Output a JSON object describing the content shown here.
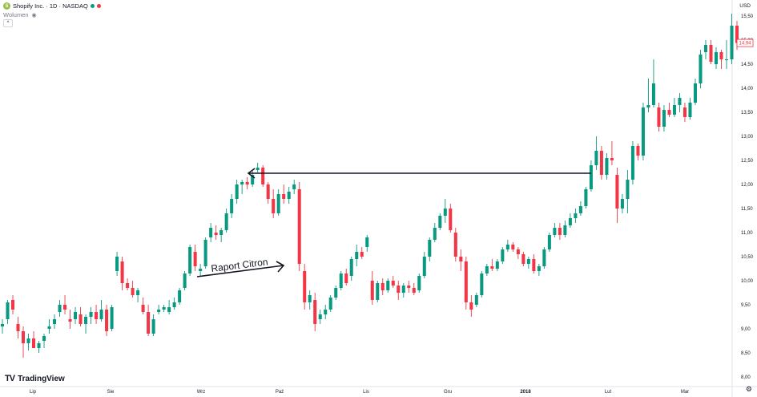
{
  "header": {
    "symbol_title": "Shopify Inc. · 1D · NASDAQ",
    "volume_label": "Wolumen",
    "collapse_glyph": "^",
    "currency": "USD",
    "brand": "TradingView",
    "status_dot_colors": [
      "#089981",
      "#f23645"
    ],
    "brand_color": "#95bf47"
  },
  "chart_data": {
    "type": "candlestick",
    "up_color": "#089981",
    "down_color": "#f23645",
    "ylim": [
      7.8,
      15.75
    ],
    "y_ticks": [
      "8,00",
      "8,50",
      "9,00",
      "9,50",
      "10,00",
      "10,50",
      "11,00",
      "11,50",
      "12,00",
      "12,50",
      "13,00",
      "13,50",
      "14,00",
      "14,50",
      "15,00",
      "15,50"
    ],
    "x_ticks": [
      {
        "label": "Lip",
        "bold": false
      },
      {
        "label": "Sie",
        "bold": false
      },
      {
        "label": "Wrz",
        "bold": false
      },
      {
        "label": "Paź",
        "bold": false
      },
      {
        "label": "Lis",
        "bold": false
      },
      {
        "label": "Gru",
        "bold": false
      },
      {
        "label": "2018",
        "bold": true
      },
      {
        "label": "Lut",
        "bold": false
      },
      {
        "label": "Mar",
        "bold": false
      }
    ],
    "last_price_label": "14,94",
    "candles": [
      [
        9.05,
        9.2,
        8.9,
        9.1
      ],
      [
        9.2,
        9.6,
        9.1,
        9.55
      ],
      [
        9.6,
        9.7,
        9.3,
        9.4
      ],
      [
        9.1,
        9.25,
        8.8,
        8.95
      ],
      [
        8.95,
        9.05,
        8.4,
        8.7
      ],
      [
        8.7,
        8.9,
        8.55,
        8.8
      ],
      [
        8.8,
        8.95,
        8.6,
        8.6
      ],
      [
        8.6,
        8.75,
        8.5,
        8.7
      ],
      [
        8.75,
        8.9,
        8.6,
        8.85
      ],
      [
        9.0,
        9.2,
        8.9,
        9.05
      ],
      [
        9.1,
        9.3,
        9.0,
        9.2
      ],
      [
        9.35,
        9.6,
        9.25,
        9.5
      ],
      [
        9.5,
        9.7,
        9.3,
        9.4
      ],
      [
        9.2,
        9.4,
        9.0,
        9.15
      ],
      [
        9.2,
        9.45,
        9.1,
        9.35
      ],
      [
        9.3,
        9.45,
        9.05,
        9.1
      ],
      [
        9.1,
        9.3,
        8.9,
        9.25
      ],
      [
        9.25,
        9.45,
        9.1,
        9.35
      ],
      [
        9.35,
        9.5,
        9.1,
        9.2
      ],
      [
        9.2,
        9.6,
        9.15,
        9.4
      ],
      [
        9.4,
        9.5,
        8.85,
        8.95
      ],
      [
        9.0,
        9.5,
        8.95,
        9.45
      ],
      [
        10.2,
        10.6,
        10.1,
        10.5
      ],
      [
        10.4,
        10.5,
        9.8,
        9.95
      ],
      [
        9.95,
        10.05,
        9.8,
        9.85
      ],
      [
        9.85,
        10.0,
        9.65,
        9.7
      ],
      [
        9.7,
        9.85,
        9.55,
        9.8
      ],
      [
        9.5,
        9.65,
        9.3,
        9.35
      ],
      [
        9.35,
        9.5,
        8.85,
        8.9
      ],
      [
        8.9,
        9.3,
        8.85,
        9.2
      ],
      [
        9.35,
        9.5,
        9.3,
        9.4
      ],
      [
        9.4,
        9.5,
        9.35,
        9.45
      ],
      [
        9.35,
        9.6,
        9.3,
        9.45
      ],
      [
        9.45,
        9.65,
        9.4,
        9.55
      ],
      [
        9.55,
        9.85,
        9.5,
        9.8
      ],
      [
        9.85,
        10.2,
        9.8,
        10.15
      ],
      [
        10.15,
        10.75,
        10.1,
        10.7
      ],
      [
        10.6,
        10.75,
        10.2,
        10.3
      ],
      [
        10.2,
        10.35,
        10.1,
        10.25
      ],
      [
        10.3,
        10.9,
        10.25,
        10.85
      ],
      [
        10.9,
        11.2,
        10.8,
        11.1
      ],
      [
        11.0,
        11.15,
        10.85,
        10.95
      ],
      [
        10.95,
        11.1,
        10.8,
        11.05
      ],
      [
        11.05,
        11.5,
        11.0,
        11.4
      ],
      [
        11.4,
        11.8,
        11.3,
        11.7
      ],
      [
        11.7,
        12.1,
        11.6,
        12.0
      ],
      [
        12.0,
        12.1,
        11.8,
        12.05
      ],
      [
        12.05,
        12.15,
        11.9,
        12.0
      ],
      [
        12.0,
        12.3,
        11.95,
        12.2
      ],
      [
        12.3,
        12.45,
        12.25,
        12.35
      ],
      [
        12.35,
        12.4,
        11.95,
        12.0
      ],
      [
        12.0,
        12.05,
        11.6,
        11.7
      ],
      [
        11.7,
        11.9,
        11.3,
        11.4
      ],
      [
        11.4,
        11.9,
        11.35,
        11.8
      ],
      [
        11.8,
        12.0,
        11.6,
        11.7
      ],
      [
        11.7,
        11.95,
        11.6,
        11.85
      ],
      [
        11.9,
        12.1,
        11.8,
        12.0
      ],
      [
        11.9,
        12.05,
        10.2,
        10.35
      ],
      [
        10.2,
        10.35,
        9.4,
        9.55
      ],
      [
        9.55,
        9.8,
        9.4,
        9.7
      ],
      [
        9.6,
        9.75,
        8.95,
        9.1
      ],
      [
        9.2,
        9.4,
        9.1,
        9.3
      ],
      [
        9.3,
        9.5,
        9.2,
        9.4
      ],
      [
        9.4,
        9.7,
        9.35,
        9.65
      ],
      [
        9.65,
        9.9,
        9.6,
        9.85
      ],
      [
        9.85,
        10.2,
        9.8,
        10.15
      ],
      [
        10.15,
        10.25,
        9.9,
        9.95
      ],
      [
        10.1,
        10.5,
        10.0,
        10.45
      ],
      [
        10.45,
        10.75,
        10.3,
        10.6
      ],
      [
        10.6,
        10.7,
        10.45,
        10.5
      ],
      [
        10.7,
        10.95,
        10.6,
        10.9
      ],
      [
        10.0,
        10.2,
        9.5,
        9.6
      ],
      [
        9.6,
        10.0,
        9.55,
        9.95
      ],
      [
        9.95,
        10.05,
        9.7,
        9.8
      ],
      [
        9.8,
        10.05,
        9.75,
        10.0
      ],
      [
        10.0,
        10.1,
        9.85,
        9.9
      ],
      [
        9.9,
        10.0,
        9.6,
        9.75
      ],
      [
        9.75,
        9.95,
        9.65,
        9.9
      ],
      [
        9.9,
        10.0,
        9.75,
        9.85
      ],
      [
        9.85,
        9.95,
        9.7,
        9.75
      ],
      [
        9.8,
        10.15,
        9.75,
        10.1
      ],
      [
        10.1,
        10.6,
        10.05,
        10.5
      ],
      [
        10.5,
        10.9,
        10.4,
        10.85
      ],
      [
        10.85,
        11.2,
        10.8,
        11.1
      ],
      [
        11.1,
        11.4,
        11.05,
        11.35
      ],
      [
        11.35,
        11.7,
        11.2,
        11.5
      ],
      [
        11.5,
        11.6,
        11.0,
        11.05
      ],
      [
        11.0,
        11.1,
        10.4,
        10.5
      ],
      [
        10.5,
        10.65,
        10.2,
        10.4
      ],
      [
        10.4,
        10.5,
        9.4,
        9.55
      ],
      [
        9.55,
        9.7,
        9.25,
        9.4
      ],
      [
        9.5,
        9.75,
        9.45,
        9.7
      ],
      [
        9.7,
        10.2,
        9.65,
        10.15
      ],
      [
        10.15,
        10.35,
        10.1,
        10.3
      ],
      [
        10.3,
        10.45,
        10.2,
        10.25
      ],
      [
        10.25,
        10.45,
        10.2,
        10.4
      ],
      [
        10.4,
        10.7,
        10.35,
        10.65
      ],
      [
        10.65,
        10.85,
        10.6,
        10.75
      ],
      [
        10.75,
        10.8,
        10.6,
        10.65
      ],
      [
        10.65,
        10.7,
        10.45,
        10.55
      ],
      [
        10.55,
        10.6,
        10.3,
        10.35
      ],
      [
        10.35,
        10.5,
        10.25,
        10.45
      ],
      [
        10.45,
        10.55,
        10.15,
        10.2
      ],
      [
        10.2,
        10.35,
        10.1,
        10.3
      ],
      [
        10.3,
        10.7,
        10.25,
        10.65
      ],
      [
        10.65,
        11.0,
        10.6,
        10.95
      ],
      [
        10.95,
        11.2,
        10.9,
        11.1
      ],
      [
        11.1,
        11.2,
        10.85,
        10.95
      ],
      [
        10.95,
        11.25,
        10.9,
        11.15
      ],
      [
        11.15,
        11.4,
        11.1,
        11.3
      ],
      [
        11.3,
        11.5,
        11.2,
        11.4
      ],
      [
        11.4,
        11.65,
        11.35,
        11.55
      ],
      [
        11.55,
        11.95,
        11.5,
        11.9
      ],
      [
        11.9,
        12.5,
        11.85,
        12.4
      ],
      [
        12.4,
        13.0,
        12.3,
        12.7
      ],
      [
        12.7,
        12.8,
        12.1,
        12.2
      ],
      [
        12.2,
        12.65,
        12.1,
        12.55
      ],
      [
        12.55,
        12.9,
        12.4,
        12.5
      ],
      [
        12.2,
        12.35,
        11.2,
        11.5
      ],
      [
        11.5,
        11.8,
        11.4,
        11.7
      ],
      [
        11.7,
        12.3,
        11.4,
        12.1
      ],
      [
        12.1,
        12.9,
        12.0,
        12.8
      ],
      [
        12.8,
        12.85,
        12.5,
        12.6
      ],
      [
        12.6,
        13.7,
        12.5,
        13.6
      ],
      [
        13.6,
        14.2,
        13.5,
        13.65
      ],
      [
        13.65,
        14.6,
        13.6,
        14.1
      ],
      [
        13.6,
        13.7,
        13.1,
        13.2
      ],
      [
        13.2,
        13.65,
        13.1,
        13.55
      ],
      [
        13.55,
        13.7,
        13.4,
        13.45
      ],
      [
        13.45,
        13.8,
        13.4,
        13.65
      ],
      [
        13.65,
        13.9,
        13.5,
        13.8
      ],
      [
        13.6,
        13.7,
        13.3,
        13.4
      ],
      [
        13.4,
        13.8,
        13.35,
        13.7
      ],
      [
        13.7,
        14.2,
        13.65,
        14.1
      ],
      [
        14.1,
        14.8,
        14.0,
        14.7
      ],
      [
        14.75,
        15.0,
        14.6,
        14.9
      ],
      [
        14.9,
        15.0,
        14.5,
        14.55
      ],
      [
        14.5,
        14.85,
        14.4,
        14.75
      ],
      [
        14.75,
        14.8,
        14.4,
        14.6
      ],
      [
        14.6,
        15.0,
        14.4,
        14.6
      ],
      [
        14.6,
        15.55,
        14.5,
        15.3
      ],
      [
        15.3,
        15.4,
        14.8,
        14.94
      ]
    ],
    "annotation": "Raport Citron"
  }
}
